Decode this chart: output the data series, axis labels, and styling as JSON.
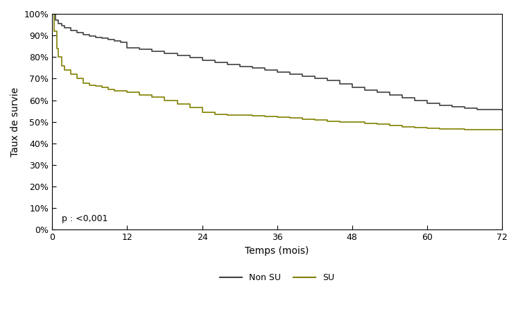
{
  "title": "",
  "xlabel": "Temps (mois)",
  "ylabel": "Taux de survie",
  "annotation": "p : <0,001",
  "legend_labels": [
    "Non SU",
    "SU"
  ],
  "color_non_su": "#404040",
  "color_su": "#808000",
  "xlim": [
    0,
    72
  ],
  "ylim": [
    0,
    1.0
  ],
  "xticks": [
    0,
    12,
    24,
    36,
    48,
    60,
    72
  ],
  "yticks": [
    0.0,
    0.1,
    0.2,
    0.3,
    0.4,
    0.5,
    0.6,
    0.7,
    0.8,
    0.9,
    1.0
  ],
  "non_su_x": [
    0,
    0.5,
    1,
    1.5,
    2,
    3,
    4,
    5,
    6,
    7,
    8,
    9,
    10,
    11,
    12,
    14,
    16,
    18,
    20,
    22,
    24,
    26,
    28,
    30,
    32,
    34,
    36,
    38,
    40,
    42,
    44,
    46,
    48,
    50,
    52,
    54,
    56,
    58,
    60,
    62,
    64,
    66,
    68,
    70,
    72
  ],
  "non_su_y": [
    1.0,
    0.97,
    0.955,
    0.945,
    0.935,
    0.923,
    0.912,
    0.904,
    0.897,
    0.891,
    0.886,
    0.88,
    0.875,
    0.869,
    0.843,
    0.835,
    0.826,
    0.817,
    0.808,
    0.797,
    0.784,
    0.775,
    0.766,
    0.757,
    0.748,
    0.739,
    0.73,
    0.72,
    0.71,
    0.7,
    0.69,
    0.675,
    0.66,
    0.648,
    0.636,
    0.624,
    0.612,
    0.6,
    0.587,
    0.575,
    0.568,
    0.562,
    0.558,
    0.556,
    0.555
  ],
  "su_x": [
    0,
    0.3,
    0.7,
    1.0,
    1.5,
    2,
    3,
    4,
    5,
    6,
    7,
    8,
    9,
    10,
    12,
    14,
    16,
    18,
    20,
    22,
    24,
    26,
    28,
    30,
    32,
    34,
    36,
    38,
    40,
    42,
    44,
    46,
    48,
    50,
    52,
    54,
    56,
    58,
    60,
    62,
    64,
    66,
    68,
    70,
    72
  ],
  "su_y": [
    1.0,
    0.92,
    0.84,
    0.8,
    0.76,
    0.74,
    0.72,
    0.7,
    0.68,
    0.67,
    0.665,
    0.658,
    0.65,
    0.644,
    0.637,
    0.625,
    0.615,
    0.6,
    0.583,
    0.565,
    0.545,
    0.535,
    0.53,
    0.53,
    0.527,
    0.524,
    0.521,
    0.518,
    0.512,
    0.508,
    0.503,
    0.5,
    0.498,
    0.494,
    0.49,
    0.482,
    0.476,
    0.473,
    0.47,
    0.468,
    0.466,
    0.465,
    0.465,
    0.464,
    0.464
  ]
}
